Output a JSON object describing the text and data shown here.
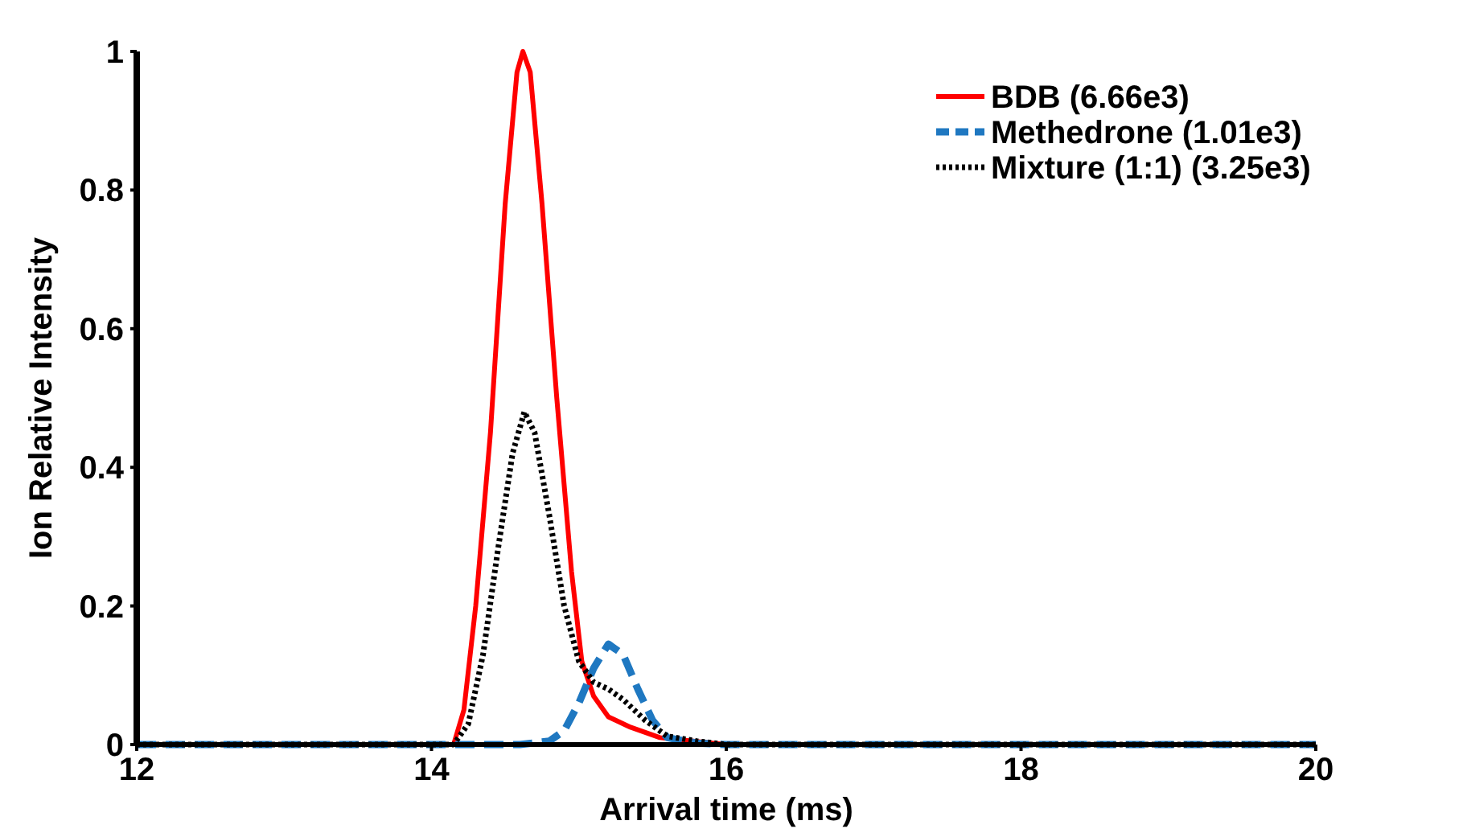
{
  "chart_data": {
    "type": "line",
    "xlabel": "Arrival time (ms)",
    "ylabel": "Ion Relative Intensity",
    "xlim": [
      12,
      20
    ],
    "xticks": [
      12,
      14,
      16,
      18,
      20
    ],
    "ylim": [
      0,
      1
    ],
    "yticks": [
      0,
      0.2,
      0.4,
      0.6,
      0.8,
      1
    ],
    "grid": false,
    "legend": "top right",
    "series": [
      {
        "name": "BDB (6.66e3)",
        "color": "#ff0000",
        "line_style": "solid",
        "x": [
          12,
          14,
          14.15,
          14.22,
          14.3,
          14.4,
          14.5,
          14.58,
          14.62,
          14.67,
          14.75,
          14.85,
          14.95,
          15.02,
          15.1,
          15.2,
          15.35,
          15.55,
          16,
          20
        ],
        "values": [
          0,
          0,
          0,
          0.05,
          0.2,
          0.45,
          0.78,
          0.97,
          1,
          0.97,
          0.78,
          0.5,
          0.25,
          0.12,
          0.07,
          0.04,
          0.025,
          0.01,
          0,
          0
        ]
      },
      {
        "name": "Methedrone (1.01e3)",
        "color": "#1f78c1",
        "line_style": "dashed",
        "x": [
          12,
          14.6,
          14.8,
          14.9,
          15,
          15.1,
          15.2,
          15.3,
          15.4,
          15.5,
          15.6,
          15.8,
          16,
          20
        ],
        "values": [
          0,
          0,
          0.005,
          0.02,
          0.06,
          0.11,
          0.145,
          0.13,
          0.08,
          0.035,
          0.01,
          0.002,
          0,
          0
        ]
      },
      {
        "name": "Mixture (1:1) (3.25e3)",
        "color": "#000000",
        "line_style": "dotted",
        "x": [
          12,
          14.15,
          14.25,
          14.35,
          14.45,
          14.55,
          14.63,
          14.7,
          14.8,
          14.9,
          15,
          15.1,
          15.2,
          15.3,
          15.45,
          15.6,
          15.8,
          16,
          20
        ],
        "values": [
          0,
          0,
          0.03,
          0.13,
          0.28,
          0.42,
          0.48,
          0.45,
          0.33,
          0.2,
          0.12,
          0.09,
          0.08,
          0.065,
          0.035,
          0.012,
          0.005,
          0,
          0
        ]
      }
    ]
  }
}
